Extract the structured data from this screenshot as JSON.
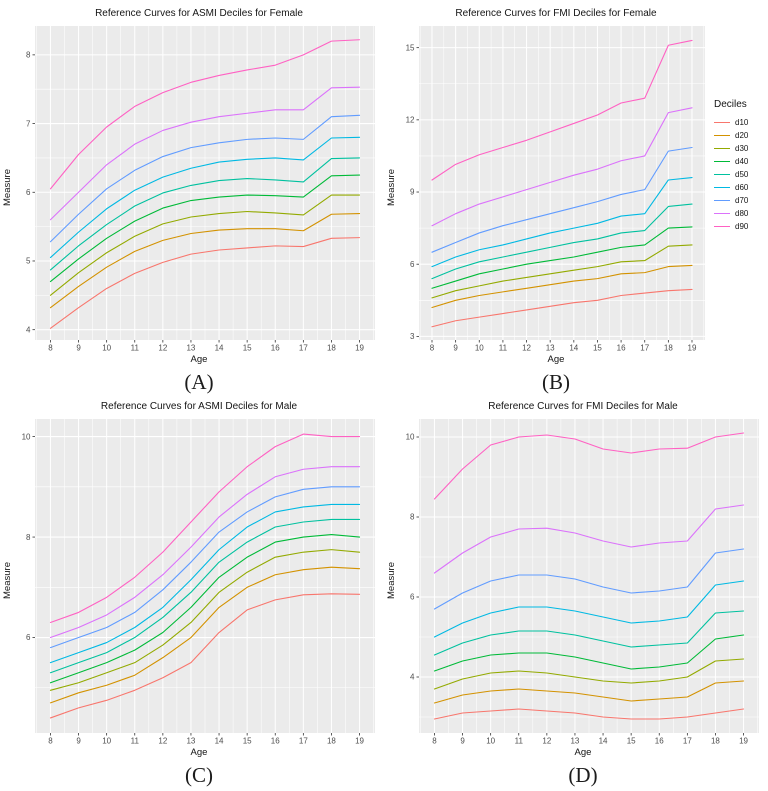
{
  "style": {
    "panel_bg": "#EBEBEB",
    "grid_color": "#FFFFFF",
    "tick_color": "#333333",
    "tick_label_color": "#4D4D4D",
    "line_width": 1.1
  },
  "legend": {
    "title": "Deciles",
    "entries": [
      {
        "label": "d10",
        "color": "#F8766D"
      },
      {
        "label": "d20",
        "color": "#D39200"
      },
      {
        "label": "d30",
        "color": "#93AA00"
      },
      {
        "label": "d40",
        "color": "#00BA38"
      },
      {
        "label": "d50",
        "color": "#00C19F"
      },
      {
        "label": "d60",
        "color": "#00B9E3"
      },
      {
        "label": "d70",
        "color": "#619CFF"
      },
      {
        "label": "d80",
        "color": "#DB72FB"
      },
      {
        "label": "d90",
        "color": "#FF61C3"
      }
    ]
  },
  "chart_data": [
    {
      "id": "a",
      "type": "line",
      "title": "Reference Curves for ASMI Deciles for Female",
      "caption": "(A)",
      "xlabel": "Age",
      "ylabel": "Measure",
      "x": [
        8,
        9,
        10,
        11,
        12,
        13,
        14,
        15,
        16,
        17,
        18,
        19
      ],
      "y_ticks": [
        4,
        5,
        6,
        7,
        8
      ],
      "xlim": [
        7.45,
        19.55
      ],
      "ylim": [
        3.85,
        8.42
      ],
      "grid": true,
      "legend_position": "right-of-row",
      "series": [
        {
          "name": "d10",
          "color": "#F8766D",
          "values": [
            4.02,
            4.32,
            4.6,
            4.82,
            4.98,
            5.1,
            5.16,
            5.19,
            5.22,
            5.21,
            5.33,
            5.34
          ]
        },
        {
          "name": "d20",
          "color": "#D39200",
          "values": [
            4.32,
            4.63,
            4.91,
            5.14,
            5.3,
            5.4,
            5.45,
            5.47,
            5.47,
            5.44,
            5.68,
            5.69
          ]
        },
        {
          "name": "d30",
          "color": "#93AA00",
          "values": [
            4.5,
            4.83,
            5.12,
            5.36,
            5.54,
            5.64,
            5.69,
            5.72,
            5.7,
            5.67,
            5.96,
            5.96
          ]
        },
        {
          "name": "d40",
          "color": "#00BA38",
          "values": [
            4.7,
            5.03,
            5.33,
            5.58,
            5.77,
            5.88,
            5.93,
            5.96,
            5.95,
            5.93,
            6.24,
            6.25
          ]
        },
        {
          "name": "d50",
          "color": "#00C19F",
          "values": [
            4.87,
            5.22,
            5.53,
            5.8,
            5.99,
            6.1,
            6.17,
            6.2,
            6.18,
            6.15,
            6.49,
            6.5
          ]
        },
        {
          "name": "d60",
          "color": "#00B9E3",
          "values": [
            5.05,
            5.42,
            5.76,
            6.03,
            6.22,
            6.35,
            6.44,
            6.48,
            6.5,
            6.47,
            6.79,
            6.8
          ]
        },
        {
          "name": "d70",
          "color": "#619CFF",
          "values": [
            5.28,
            5.68,
            6.05,
            6.32,
            6.52,
            6.65,
            6.72,
            6.77,
            6.79,
            6.77,
            7.1,
            7.12
          ]
        },
        {
          "name": "d80",
          "color": "#DB72FB",
          "values": [
            5.6,
            6.0,
            6.4,
            6.7,
            6.9,
            7.02,
            7.1,
            7.15,
            7.2,
            7.2,
            7.52,
            7.53
          ]
        },
        {
          "name": "d90",
          "color": "#FF61C3",
          "values": [
            6.05,
            6.55,
            6.95,
            7.25,
            7.45,
            7.6,
            7.7,
            7.78,
            7.85,
            8.0,
            8.2,
            8.22
          ]
        }
      ]
    },
    {
      "id": "b",
      "type": "line",
      "title": "Reference Curves for FMI Deciles for Female",
      "caption": "(B)",
      "xlabel": "Age",
      "ylabel": "Measure",
      "x": [
        8,
        9,
        10,
        11,
        12,
        13,
        14,
        15,
        16,
        17,
        18,
        19
      ],
      "y_ticks": [
        3,
        6,
        9,
        12,
        15
      ],
      "xlim": [
        7.45,
        19.55
      ],
      "ylim": [
        2.85,
        15.9
      ],
      "grid": true,
      "series": [
        {
          "name": "d10",
          "color": "#F8766D",
          "values": [
            3.4,
            3.65,
            3.8,
            3.95,
            4.1,
            4.25,
            4.4,
            4.5,
            4.7,
            4.8,
            4.9,
            4.95
          ]
        },
        {
          "name": "d20",
          "color": "#D39200",
          "values": [
            4.2,
            4.5,
            4.7,
            4.85,
            5.0,
            5.15,
            5.3,
            5.4,
            5.6,
            5.65,
            5.9,
            5.95
          ]
        },
        {
          "name": "d30",
          "color": "#93AA00",
          "values": [
            4.6,
            4.9,
            5.1,
            5.3,
            5.45,
            5.6,
            5.75,
            5.9,
            6.1,
            6.15,
            6.75,
            6.8
          ]
        },
        {
          "name": "d40",
          "color": "#00BA38",
          "values": [
            5.0,
            5.3,
            5.6,
            5.8,
            6.0,
            6.15,
            6.3,
            6.5,
            6.7,
            6.8,
            7.5,
            7.55
          ]
        },
        {
          "name": "d50",
          "color": "#00C19F",
          "values": [
            5.4,
            5.8,
            6.1,
            6.3,
            6.5,
            6.7,
            6.9,
            7.05,
            7.3,
            7.4,
            8.4,
            8.5
          ]
        },
        {
          "name": "d60",
          "color": "#00B9E3",
          "values": [
            5.9,
            6.3,
            6.6,
            6.8,
            7.05,
            7.3,
            7.5,
            7.7,
            8.0,
            8.1,
            9.5,
            9.6
          ]
        },
        {
          "name": "d70",
          "color": "#619CFF",
          "values": [
            6.5,
            6.9,
            7.3,
            7.6,
            7.85,
            8.1,
            8.35,
            8.6,
            8.9,
            9.1,
            10.7,
            10.85
          ]
        },
        {
          "name": "d80",
          "color": "#DB72FB",
          "values": [
            7.6,
            8.1,
            8.5,
            8.8,
            9.1,
            9.4,
            9.7,
            9.95,
            10.3,
            10.5,
            12.3,
            12.5
          ]
        },
        {
          "name": "d90",
          "color": "#FF61C3",
          "values": [
            9.5,
            10.15,
            10.55,
            10.85,
            11.15,
            11.5,
            11.85,
            12.2,
            12.7,
            12.9,
            15.1,
            15.3
          ]
        }
      ]
    },
    {
      "id": "c",
      "type": "line",
      "title": "Reference Curves for ASMI Deciles for Male",
      "caption": "(C)",
      "xlabel": "Age",
      "ylabel": "Measure",
      "x": [
        8,
        9,
        10,
        11,
        12,
        13,
        14,
        15,
        16,
        17,
        18,
        19
      ],
      "y_ticks": [
        6,
        8,
        10
      ],
      "xlim": [
        7.45,
        19.55
      ],
      "ylim": [
        4.1,
        10.35
      ],
      "grid": true,
      "series": [
        {
          "name": "d10",
          "color": "#F8766D",
          "values": [
            4.4,
            4.6,
            4.75,
            4.95,
            5.2,
            5.5,
            6.1,
            6.55,
            6.75,
            6.85,
            6.87,
            6.86
          ]
        },
        {
          "name": "d20",
          "color": "#D39200",
          "values": [
            4.7,
            4.9,
            5.05,
            5.25,
            5.6,
            6.0,
            6.6,
            7.0,
            7.25,
            7.35,
            7.4,
            7.37
          ]
        },
        {
          "name": "d30",
          "color": "#93AA00",
          "values": [
            4.95,
            5.1,
            5.3,
            5.5,
            5.85,
            6.3,
            6.9,
            7.3,
            7.6,
            7.7,
            7.75,
            7.7
          ]
        },
        {
          "name": "d40",
          "color": "#00BA38",
          "values": [
            5.1,
            5.3,
            5.5,
            5.75,
            6.1,
            6.6,
            7.2,
            7.6,
            7.9,
            8.0,
            8.05,
            8.0
          ]
        },
        {
          "name": "d50",
          "color": "#00C19F",
          "values": [
            5.3,
            5.5,
            5.7,
            6.0,
            6.4,
            6.9,
            7.5,
            7.9,
            8.2,
            8.3,
            8.35,
            8.35
          ]
        },
        {
          "name": "d60",
          "color": "#00B9E3",
          "values": [
            5.5,
            5.7,
            5.9,
            6.2,
            6.6,
            7.15,
            7.75,
            8.2,
            8.5,
            8.6,
            8.65,
            8.65
          ]
        },
        {
          "name": "d70",
          "color": "#619CFF",
          "values": [
            5.8,
            6.0,
            6.2,
            6.5,
            6.95,
            7.5,
            8.1,
            8.5,
            8.8,
            8.95,
            9.0,
            9.0
          ]
        },
        {
          "name": "d80",
          "color": "#DB72FB",
          "values": [
            6.0,
            6.2,
            6.45,
            6.8,
            7.25,
            7.8,
            8.4,
            8.85,
            9.2,
            9.35,
            9.4,
            9.4
          ]
        },
        {
          "name": "d90",
          "color": "#FF61C3",
          "values": [
            6.3,
            6.5,
            6.8,
            7.2,
            7.7,
            8.3,
            8.9,
            9.4,
            9.8,
            10.05,
            10.0,
            10.0
          ]
        }
      ]
    },
    {
      "id": "d",
      "type": "line",
      "title": "Reference Curves for FMI Deciles for Male",
      "caption": "(D)",
      "xlabel": "Age",
      "ylabel": "Measure",
      "x": [
        8,
        9,
        10,
        11,
        12,
        13,
        14,
        15,
        16,
        17,
        18,
        19
      ],
      "y_ticks": [
        4,
        6,
        8,
        10
      ],
      "xlim": [
        7.45,
        19.55
      ],
      "ylim": [
        2.6,
        10.45
      ],
      "grid": true,
      "series": [
        {
          "name": "d10",
          "color": "#F8766D",
          "values": [
            2.95,
            3.1,
            3.15,
            3.2,
            3.15,
            3.1,
            3.0,
            2.95,
            2.95,
            3.0,
            3.1,
            3.2
          ]
        },
        {
          "name": "d20",
          "color": "#D39200",
          "values": [
            3.35,
            3.55,
            3.65,
            3.7,
            3.65,
            3.6,
            3.5,
            3.4,
            3.45,
            3.5,
            3.85,
            3.9
          ]
        },
        {
          "name": "d30",
          "color": "#93AA00",
          "values": [
            3.7,
            3.95,
            4.1,
            4.15,
            4.1,
            4.0,
            3.9,
            3.85,
            3.9,
            4.0,
            4.4,
            4.45
          ]
        },
        {
          "name": "d40",
          "color": "#00BA38",
          "values": [
            4.15,
            4.4,
            4.55,
            4.6,
            4.6,
            4.5,
            4.35,
            4.2,
            4.25,
            4.35,
            4.95,
            5.05
          ]
        },
        {
          "name": "d50",
          "color": "#00C19F",
          "values": [
            4.55,
            4.85,
            5.05,
            5.15,
            5.15,
            5.05,
            4.9,
            4.75,
            4.8,
            4.85,
            5.6,
            5.65
          ]
        },
        {
          "name": "d60",
          "color": "#00B9E3",
          "values": [
            5.0,
            5.35,
            5.6,
            5.75,
            5.75,
            5.65,
            5.5,
            5.35,
            5.4,
            5.5,
            6.3,
            6.4
          ]
        },
        {
          "name": "d70",
          "color": "#619CFF",
          "values": [
            5.7,
            6.1,
            6.4,
            6.55,
            6.55,
            6.45,
            6.25,
            6.1,
            6.15,
            6.25,
            7.1,
            7.2
          ]
        },
        {
          "name": "d80",
          "color": "#DB72FB",
          "values": [
            6.6,
            7.1,
            7.5,
            7.7,
            7.72,
            7.6,
            7.4,
            7.25,
            7.35,
            7.4,
            8.2,
            8.3
          ]
        },
        {
          "name": "d90",
          "color": "#FF61C3",
          "values": [
            8.45,
            9.2,
            9.8,
            10.0,
            10.05,
            9.95,
            9.7,
            9.6,
            9.7,
            9.72,
            10.0,
            10.1
          ]
        }
      ]
    }
  ]
}
